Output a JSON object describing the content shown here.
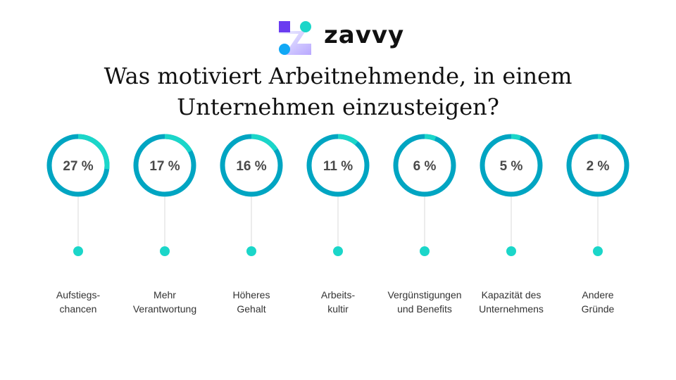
{
  "brand": "zavvy",
  "title_line1": "Was motiviert Arbeitnehmende, in einem",
  "title_line2": "Unternehmen einzusteigen?",
  "colors": {
    "ring_highlight": "#1bd6c9",
    "ring_base": "#00a5c2",
    "dot": "#1bd6c9",
    "stem": "#d9d9d9",
    "value_text": "#4a4a4a"
  },
  "chart_data": {
    "type": "pie",
    "title": "Was motiviert Arbeitnehmende, in einem Unternehmen einzusteigen?",
    "unit": "%",
    "categories": [
      [
        "Aufstiegs-",
        "chancen"
      ],
      [
        "Mehr",
        "Verantwortung"
      ],
      [
        "Höheres",
        "Gehalt"
      ],
      [
        "Arbeits-",
        "kultir"
      ],
      [
        "Vergünstigungen",
        "und Benefits"
      ],
      [
        "Kapazität des",
        "Unternehmens"
      ],
      [
        "Andere",
        "Gründe"
      ]
    ],
    "values": [
      27,
      17,
      16,
      11,
      6,
      5,
      2
    ],
    "value_labels": [
      "27 %",
      "17 %",
      "16 %",
      "11 %",
      "6 %",
      "5 %",
      "2 %"
    ]
  }
}
